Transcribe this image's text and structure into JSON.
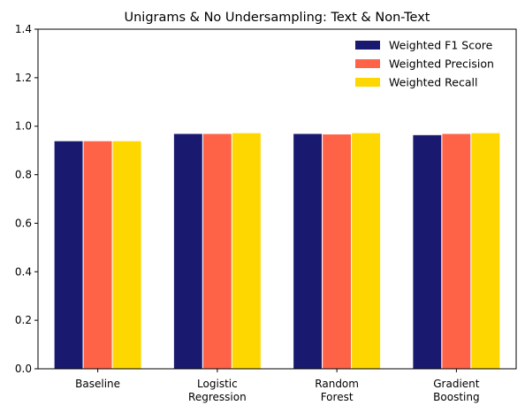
{
  "chart_data": {
    "type": "bar",
    "title": "Unigrams & No Undersampling: Text & Non-Text",
    "xlabel": "",
    "ylabel": "",
    "categories": [
      [
        "Baseline"
      ],
      [
        "Logistic",
        "Regression"
      ],
      [
        "Random",
        "Forest"
      ],
      [
        "Gradient",
        "Boosting"
      ]
    ],
    "series": [
      {
        "name": "Weighted F1 Score",
        "color": "#191970",
        "values": [
          0.94,
          0.97,
          0.97,
          0.965
        ]
      },
      {
        "name": "Weighted Precision",
        "color": "#FF6347",
        "values": [
          0.94,
          0.97,
          0.968,
          0.97
        ]
      },
      {
        "name": "Weighted Recall",
        "color": "#FFD700",
        "values": [
          0.94,
          0.973,
          0.973,
          0.973
        ]
      }
    ],
    "ylim": [
      0,
      1.4
    ],
    "yticks": [
      "0.0",
      "0.2",
      "0.4",
      "0.6",
      "0.8",
      "1.0",
      "1.2",
      "1.4"
    ],
    "grid": false,
    "legend_position": "top-right"
  }
}
